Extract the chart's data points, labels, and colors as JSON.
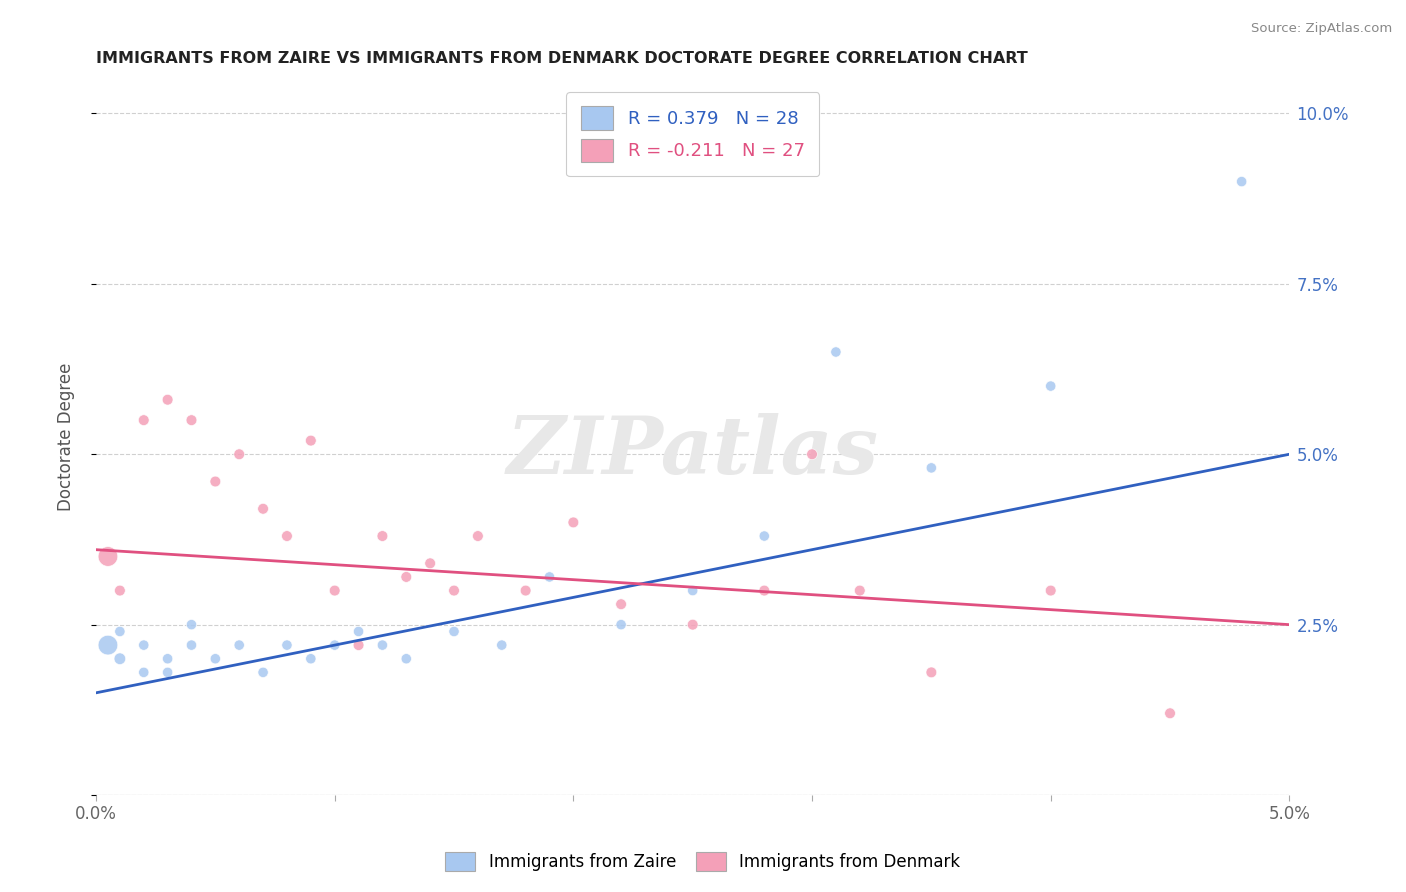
{
  "title": "IMMIGRANTS FROM ZAIRE VS IMMIGRANTS FROM DENMARK DOCTORATE DEGREE CORRELATION CHART",
  "source": "Source: ZipAtlas.com",
  "ylabel": "Doctorate Degree",
  "xlim": [
    0.0,
    0.05
  ],
  "ylim": [
    0.0,
    0.105
  ],
  "xticks": [
    0.0,
    0.01,
    0.02,
    0.03,
    0.04,
    0.05
  ],
  "xtick_labels": [
    "0.0%",
    "",
    "",
    "",
    "",
    "5.0%"
  ],
  "yticks": [
    0.0,
    0.025,
    0.05,
    0.075,
    0.1
  ],
  "ytick_labels": [
    "",
    "2.5%",
    "5.0%",
    "7.5%",
    "10.0%"
  ],
  "legend_R_zaire": "R = 0.379",
  "legend_N_zaire": "N = 28",
  "legend_R_denmark": "R = -0.211",
  "legend_N_denmark": "N = 27",
  "zaire_color": "#A8C8F0",
  "denmark_color": "#F4A0B8",
  "zaire_line_color": "#3060C0",
  "denmark_line_color": "#E05080",
  "zaire_line_start": 0.015,
  "zaire_line_end": 0.05,
  "denmark_line_start": 0.036,
  "denmark_line_end": 0.025,
  "zaire_x": [
    0.0005,
    0.001,
    0.001,
    0.002,
    0.002,
    0.003,
    0.003,
    0.004,
    0.004,
    0.005,
    0.006,
    0.007,
    0.008,
    0.009,
    0.01,
    0.011,
    0.012,
    0.013,
    0.015,
    0.017,
    0.019,
    0.022,
    0.025,
    0.028,
    0.031,
    0.035,
    0.04,
    0.048
  ],
  "zaire_y": [
    0.022,
    0.02,
    0.024,
    0.018,
    0.022,
    0.02,
    0.018,
    0.022,
    0.025,
    0.02,
    0.022,
    0.018,
    0.022,
    0.02,
    0.022,
    0.024,
    0.022,
    0.02,
    0.024,
    0.022,
    0.032,
    0.025,
    0.03,
    0.038,
    0.065,
    0.048,
    0.06,
    0.09
  ],
  "zaire_size": [
    200,
    70,
    55,
    55,
    55,
    55,
    55,
    55,
    55,
    55,
    55,
    55,
    55,
    55,
    55,
    55,
    55,
    55,
    55,
    55,
    55,
    55,
    55,
    55,
    55,
    55,
    55,
    55
  ],
  "denmark_x": [
    0.0005,
    0.001,
    0.002,
    0.003,
    0.004,
    0.005,
    0.006,
    0.007,
    0.008,
    0.009,
    0.01,
    0.011,
    0.012,
    0.013,
    0.014,
    0.015,
    0.016,
    0.018,
    0.02,
    0.022,
    0.025,
    0.028,
    0.03,
    0.032,
    0.035,
    0.04,
    0.045
  ],
  "denmark_y": [
    0.035,
    0.03,
    0.055,
    0.058,
    0.055,
    0.046,
    0.05,
    0.042,
    0.038,
    0.052,
    0.03,
    0.022,
    0.038,
    0.032,
    0.034,
    0.03,
    0.038,
    0.03,
    0.04,
    0.028,
    0.025,
    0.03,
    0.05,
    0.03,
    0.018,
    0.03,
    0.012
  ],
  "denmark_size": [
    200,
    60,
    60,
    60,
    60,
    60,
    60,
    60,
    60,
    60,
    60,
    60,
    60,
    60,
    60,
    60,
    60,
    60,
    60,
    60,
    60,
    60,
    60,
    60,
    60,
    60,
    60
  ]
}
